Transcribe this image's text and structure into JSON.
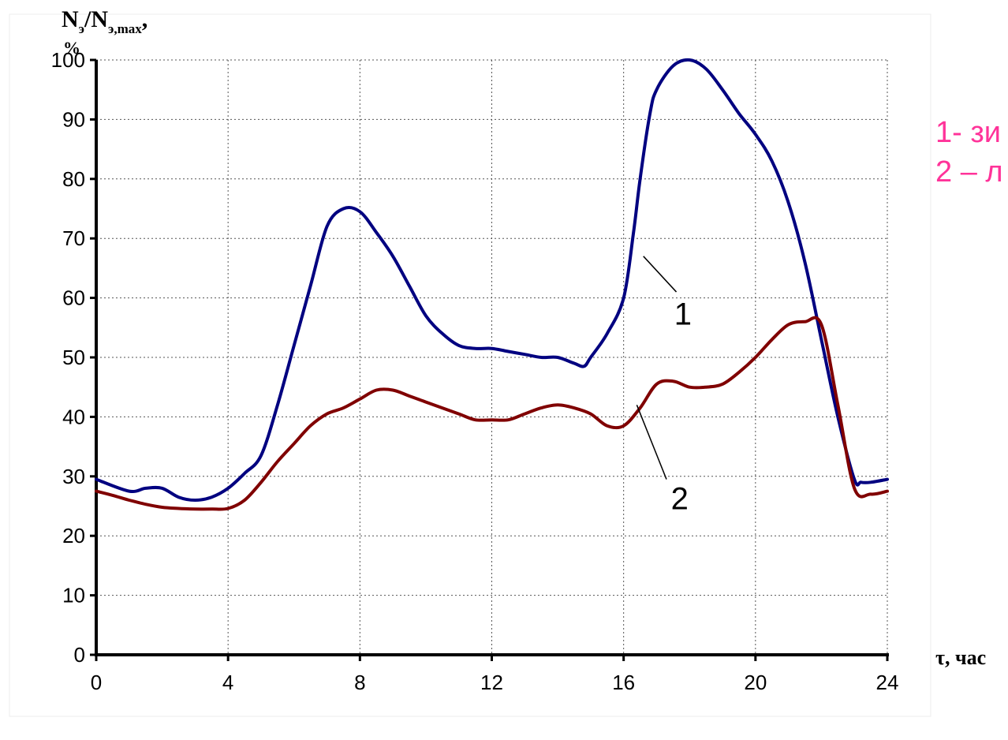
{
  "chart_data": {
    "type": "line",
    "ylabel_main": "N",
    "ylabel_sub1": "э",
    "ylabel_mid": "/N",
    "ylabel_sub2": "э,max",
    "ylabel_tail": ",",
    "ylabel_unit": "%",
    "xlabel": "τ, час",
    "xlim": [
      0,
      24
    ],
    "ylim": [
      0,
      100
    ],
    "x_ticks": [
      "0",
      "4",
      "8",
      "12",
      "16",
      "20",
      "24"
    ],
    "y_ticks": [
      "0",
      "10",
      "20",
      "30",
      "40",
      "50",
      "60",
      "70",
      "80",
      "90",
      "100"
    ],
    "grid": true,
    "series": [
      {
        "name": "1",
        "color": "#000080",
        "x": [
          0,
          1,
          1.5,
          2,
          2.5,
          3,
          3.5,
          4,
          4.5,
          5,
          5.5,
          6,
          6.5,
          7,
          7.5,
          8,
          8.5,
          9,
          9.5,
          10,
          10.5,
          11,
          11.5,
          12,
          12.5,
          13,
          13.5,
          14,
          14.5,
          14.8,
          15,
          15.5,
          16,
          16.3,
          16.5,
          16.8,
          17,
          17.5,
          18,
          18.5,
          19,
          19.5,
          20,
          20.5,
          21,
          21.5,
          22,
          22.5,
          23,
          23.2,
          23.5,
          24
        ],
        "y": [
          29.5,
          27.5,
          28,
          28,
          26.5,
          26,
          26.5,
          28,
          30.5,
          33.5,
          42,
          52,
          62,
          72,
          75,
          74.5,
          71,
          67,
          62,
          57,
          54,
          52,
          51.5,
          51.5,
          51,
          50.5,
          50,
          50,
          49,
          48.5,
          50,
          54,
          60,
          71,
          80,
          91,
          95,
          99,
          100,
          98.5,
          95,
          91,
          87.5,
          83,
          76,
          66,
          53,
          40,
          29.5,
          29,
          29,
          29.5
        ]
      },
      {
        "name": "2",
        "color": "#800000",
        "x": [
          0,
          0.5,
          1,
          1.5,
          2,
          2.5,
          3,
          3.5,
          4,
          4.5,
          5,
          5.5,
          6,
          6.5,
          7,
          7.5,
          8,
          8.5,
          9,
          9.5,
          10,
          10.5,
          11,
          11.5,
          12,
          12.5,
          13,
          13.5,
          14,
          14.5,
          15,
          15.5,
          16,
          16.5,
          17,
          17.5,
          18,
          18.5,
          19,
          19.5,
          20,
          20.5,
          21,
          21.5,
          22,
          22.5,
          23,
          23.5,
          24
        ],
        "y": [
          27.5,
          26.8,
          26,
          25.3,
          24.8,
          24.6,
          24.5,
          24.5,
          24.6,
          26,
          29,
          32.5,
          35.5,
          38.5,
          40.5,
          41.5,
          43,
          44.5,
          44.5,
          43.5,
          42.5,
          41.5,
          40.5,
          39.5,
          39.5,
          39.5,
          40.5,
          41.5,
          42,
          41.5,
          40.5,
          38.5,
          38.5,
          41.5,
          45.5,
          46,
          45,
          45,
          45.5,
          47.5,
          50,
          53,
          55.5,
          56,
          55.5,
          42,
          28,
          27,
          27.5
        ]
      }
    ],
    "curve_labels": [
      "1",
      "2"
    ],
    "legend": {
      "position": "top-right",
      "entries": [
        {
          "text": "1- зи",
          "color": "#ff3399"
        },
        {
          "text": "2 – л",
          "color": "#ff3399"
        }
      ]
    }
  }
}
